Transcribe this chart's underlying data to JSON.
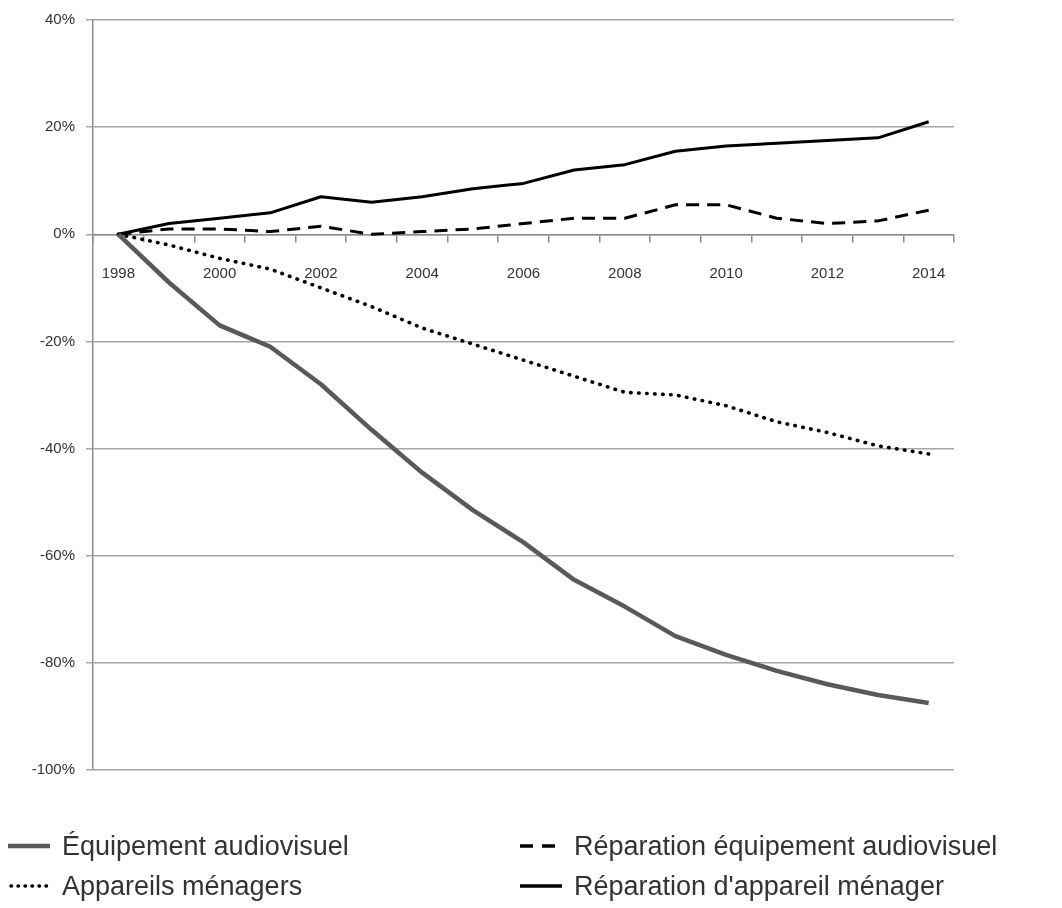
{
  "chart_data": {
    "type": "line",
    "categories": [
      "1998",
      null,
      "2000",
      null,
      "2002",
      null,
      "2004",
      null,
      "2006",
      null,
      "2008",
      null,
      "2010",
      null,
      "2012",
      null,
      "2014"
    ],
    "ylim": [
      -100,
      40
    ],
    "yticks": [
      {
        "value": 40,
        "label": "40%"
      },
      {
        "value": 20,
        "label": "20%"
      },
      {
        "value": 0,
        "label": "0%"
      },
      {
        "value": -20,
        "label": "-20%"
      },
      {
        "value": -40,
        "label": "-40%"
      },
      {
        "value": -60,
        "label": "-60%"
      },
      {
        "value": -80,
        "label": "-80%"
      },
      {
        "value": -100,
        "label": "-100%"
      }
    ],
    "grid": "y",
    "legend": "bottom",
    "marker": "none",
    "series": [
      {
        "name": "Équipement audiovisuel",
        "color": "#595959",
        "line_style": "solid",
        "values": [
          0,
          -9,
          -17,
          -21,
          -28,
          -36.5,
          -44.5,
          -51.5,
          -57.5,
          -64.5,
          -69.5,
          -75,
          -78.5,
          -81.5,
          -84,
          -86,
          -87.5
        ]
      },
      {
        "name": "Réparation équipement audiovisuel",
        "color": "#000000",
        "line_style": "dashed",
        "values": [
          0,
          1,
          1,
          0.5,
          1.5,
          0,
          0.5,
          1,
          2,
          3,
          3,
          5.5,
          5.5,
          3,
          2,
          2.5,
          4.5
        ]
      },
      {
        "name": "Appareils ménagers",
        "color": "#000000",
        "line_style": "dotted",
        "values": [
          0,
          -2,
          -4.5,
          -6.5,
          -10,
          -13.5,
          -17.5,
          -20.5,
          -23.5,
          -26.5,
          -29.5,
          -30,
          -32,
          -35,
          -37,
          -39.5,
          -41
        ]
      },
      {
        "name": "Réparation d'appareil ménager",
        "color": "#000000",
        "line_style": "solid",
        "values": [
          0,
          2,
          3,
          4,
          7,
          6,
          7,
          8.5,
          9.5,
          12,
          13,
          15.5,
          16.5,
          17,
          17.5,
          18,
          21
        ]
      }
    ]
  }
}
